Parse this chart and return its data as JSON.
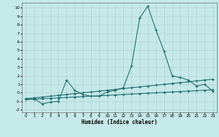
{
  "xlabel": "Humidex (Indice chaleur)",
  "xlim": [
    -0.5,
    23.5
  ],
  "ylim": [
    -2.3,
    10.6
  ],
  "xtick_vals": [
    0,
    1,
    2,
    3,
    4,
    5,
    6,
    7,
    8,
    9,
    10,
    11,
    12,
    13,
    14,
    15,
    16,
    17,
    18,
    19,
    20,
    21,
    22,
    23
  ],
  "ytick_vals": [
    -2,
    -1,
    0,
    1,
    2,
    3,
    4,
    5,
    6,
    7,
    8,
    9,
    10
  ],
  "background_color": "#c5e8e8",
  "grid_color": "#b0cccc",
  "line_color": "#1a6b6b",
  "line1_x": [
    0,
    1,
    2,
    3,
    4,
    5,
    6,
    7,
    8,
    9,
    10,
    11,
    12,
    13,
    14,
    15,
    16,
    17,
    18,
    19,
    20,
    21,
    22,
    23
  ],
  "line1_y": [
    -0.7,
    -0.7,
    -1.3,
    -1.1,
    -1.0,
    1.5,
    0.3,
    -0.2,
    -0.4,
    -0.4,
    0.1,
    0.3,
    0.6,
    3.2,
    8.8,
    10.2,
    7.4,
    4.9,
    2.0,
    1.8,
    1.5,
    0.8,
    1.0,
    0.2
  ],
  "line2_x": [
    0,
    1,
    2,
    3,
    4,
    5,
    6,
    7,
    8,
    9,
    10,
    11,
    12,
    13,
    14,
    15,
    16,
    17,
    18,
    19,
    20,
    21,
    22,
    23
  ],
  "line2_y": [
    -0.7,
    -0.6,
    -0.5,
    -0.4,
    -0.3,
    -0.2,
    -0.1,
    0.0,
    0.1,
    0.2,
    0.3,
    0.4,
    0.5,
    0.6,
    0.7,
    0.8,
    0.9,
    1.0,
    1.1,
    1.2,
    1.3,
    1.4,
    1.5,
    1.6
  ],
  "line3_x": [
    0,
    1,
    2,
    3,
    4,
    5,
    6,
    7,
    8,
    9,
    10,
    11,
    12,
    13,
    14,
    15,
    16,
    17,
    18,
    19,
    20,
    21,
    22,
    23
  ],
  "line3_y": [
    -0.8,
    -0.75,
    -0.7,
    -0.65,
    -0.6,
    -0.55,
    -0.5,
    -0.45,
    -0.4,
    -0.35,
    -0.3,
    -0.25,
    -0.2,
    -0.15,
    -0.1,
    -0.05,
    0.0,
    0.05,
    0.1,
    0.15,
    0.2,
    0.25,
    0.3,
    0.35
  ]
}
